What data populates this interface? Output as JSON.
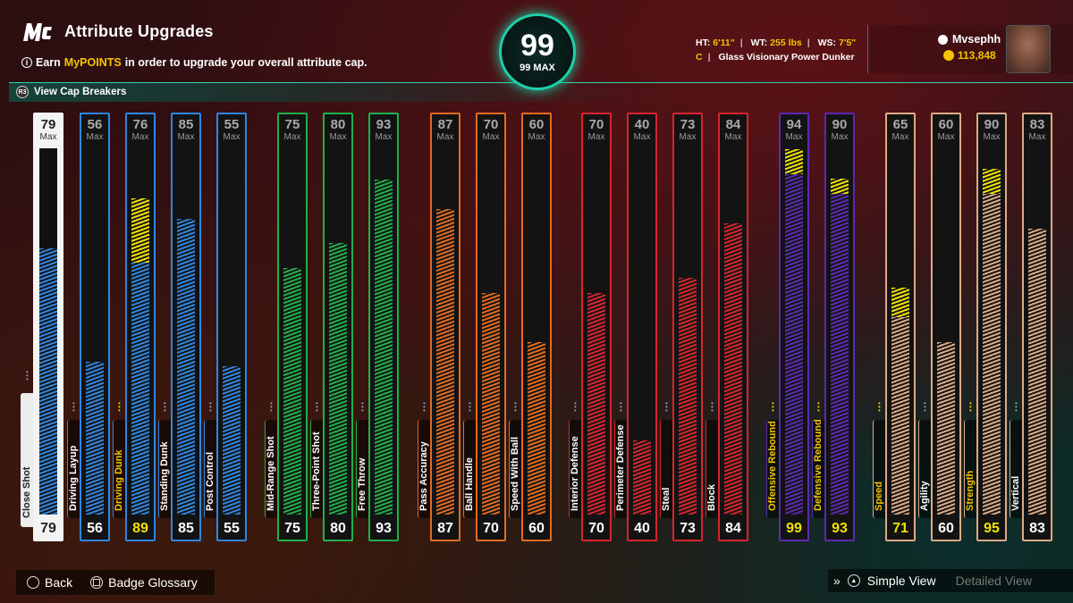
{
  "header": {
    "title": "Attribute Upgrades",
    "info_prefix": "Earn ",
    "info_highlight": "MyPOINTS",
    "info_suffix": " in order to upgrade your overall attribute cap.",
    "cap_breakers_label": "View Cap Breakers"
  },
  "overall": {
    "value": "99",
    "max_label": "99 MAX"
  },
  "player": {
    "ht_label": "HT:",
    "ht": "6'11\"",
    "wt_label": "WT:",
    "wt": "255 lbs",
    "ws_label": "WS:",
    "ws": "7'5\"",
    "position": "C",
    "archetype": "Glass Visionary Power Dunker",
    "name": "Mvsephh",
    "vc": "113,848"
  },
  "max_label": "Max",
  "colors": {
    "finishing": "#2f86e0",
    "shooting": "#1fb04a",
    "playmaking": "#e36a1e",
    "defense": "#d8242f",
    "rebounding": "#5c2ab0",
    "physicals": "#dcaa86",
    "boost": "#f2e200"
  },
  "attributes": [
    {
      "label": "Close Shot",
      "cap": "79",
      "value": "79",
      "group": "finishing",
      "boost": 0
    },
    {
      "label": "Driving Layup",
      "cap": "56",
      "value": "56",
      "group": "finishing",
      "boost": 0
    },
    {
      "label": "Driving Dunk",
      "cap": "76",
      "value": "89",
      "group": "finishing",
      "boost": 13
    },
    {
      "label": "Standing Dunk",
      "cap": "85",
      "value": "85",
      "group": "finishing",
      "boost": 0
    },
    {
      "label": "Post Control",
      "cap": "55",
      "value": "55",
      "group": "finishing",
      "boost": 0
    },
    {
      "label": "Mid-Range Shot",
      "cap": "75",
      "value": "75",
      "group": "shooting",
      "boost": 0
    },
    {
      "label": "Three-Point Shot",
      "cap": "80",
      "value": "80",
      "group": "shooting",
      "boost": 0
    },
    {
      "label": "Free Throw",
      "cap": "93",
      "value": "93",
      "group": "shooting",
      "boost": 0
    },
    {
      "label": "Pass Accuracy",
      "cap": "87",
      "value": "87",
      "group": "playmaking",
      "boost": 0
    },
    {
      "label": "Ball Handle",
      "cap": "70",
      "value": "70",
      "group": "playmaking",
      "boost": 0
    },
    {
      "label": "Speed With Ball",
      "cap": "60",
      "value": "60",
      "group": "playmaking",
      "boost": 0
    },
    {
      "label": "Interior Defense",
      "cap": "70",
      "value": "70",
      "group": "defense",
      "boost": 0
    },
    {
      "label": "Perimeter Defense",
      "cap": "40",
      "value": "40",
      "group": "defense",
      "boost": 0
    },
    {
      "label": "Steal",
      "cap": "73",
      "value": "73",
      "group": "defense",
      "boost": 0
    },
    {
      "label": "Block",
      "cap": "84",
      "value": "84",
      "group": "defense",
      "boost": 0
    },
    {
      "label": "Offensive Rebound",
      "cap": "94",
      "value": "99",
      "group": "rebounding",
      "boost": 5
    },
    {
      "label": "Defensive Rebound",
      "cap": "90",
      "value": "93",
      "group": "rebounding",
      "boost": 3
    },
    {
      "label": "Speed",
      "cap": "65",
      "value": "71",
      "group": "physicals",
      "boost": 6
    },
    {
      "label": "Agility",
      "cap": "60",
      "value": "60",
      "group": "physicals",
      "boost": 0
    },
    {
      "label": "Strength",
      "cap": "90",
      "value": "95",
      "group": "physicals",
      "boost": 5
    },
    {
      "label": "Vertical",
      "cap": "83",
      "value": "83",
      "group": "physicals",
      "boost": 0
    }
  ],
  "footer": {
    "back_label": "Back",
    "glossary_label": "Badge Glossary",
    "simple_view_label": "Simple View",
    "detailed_view_label": "Detailed View"
  }
}
